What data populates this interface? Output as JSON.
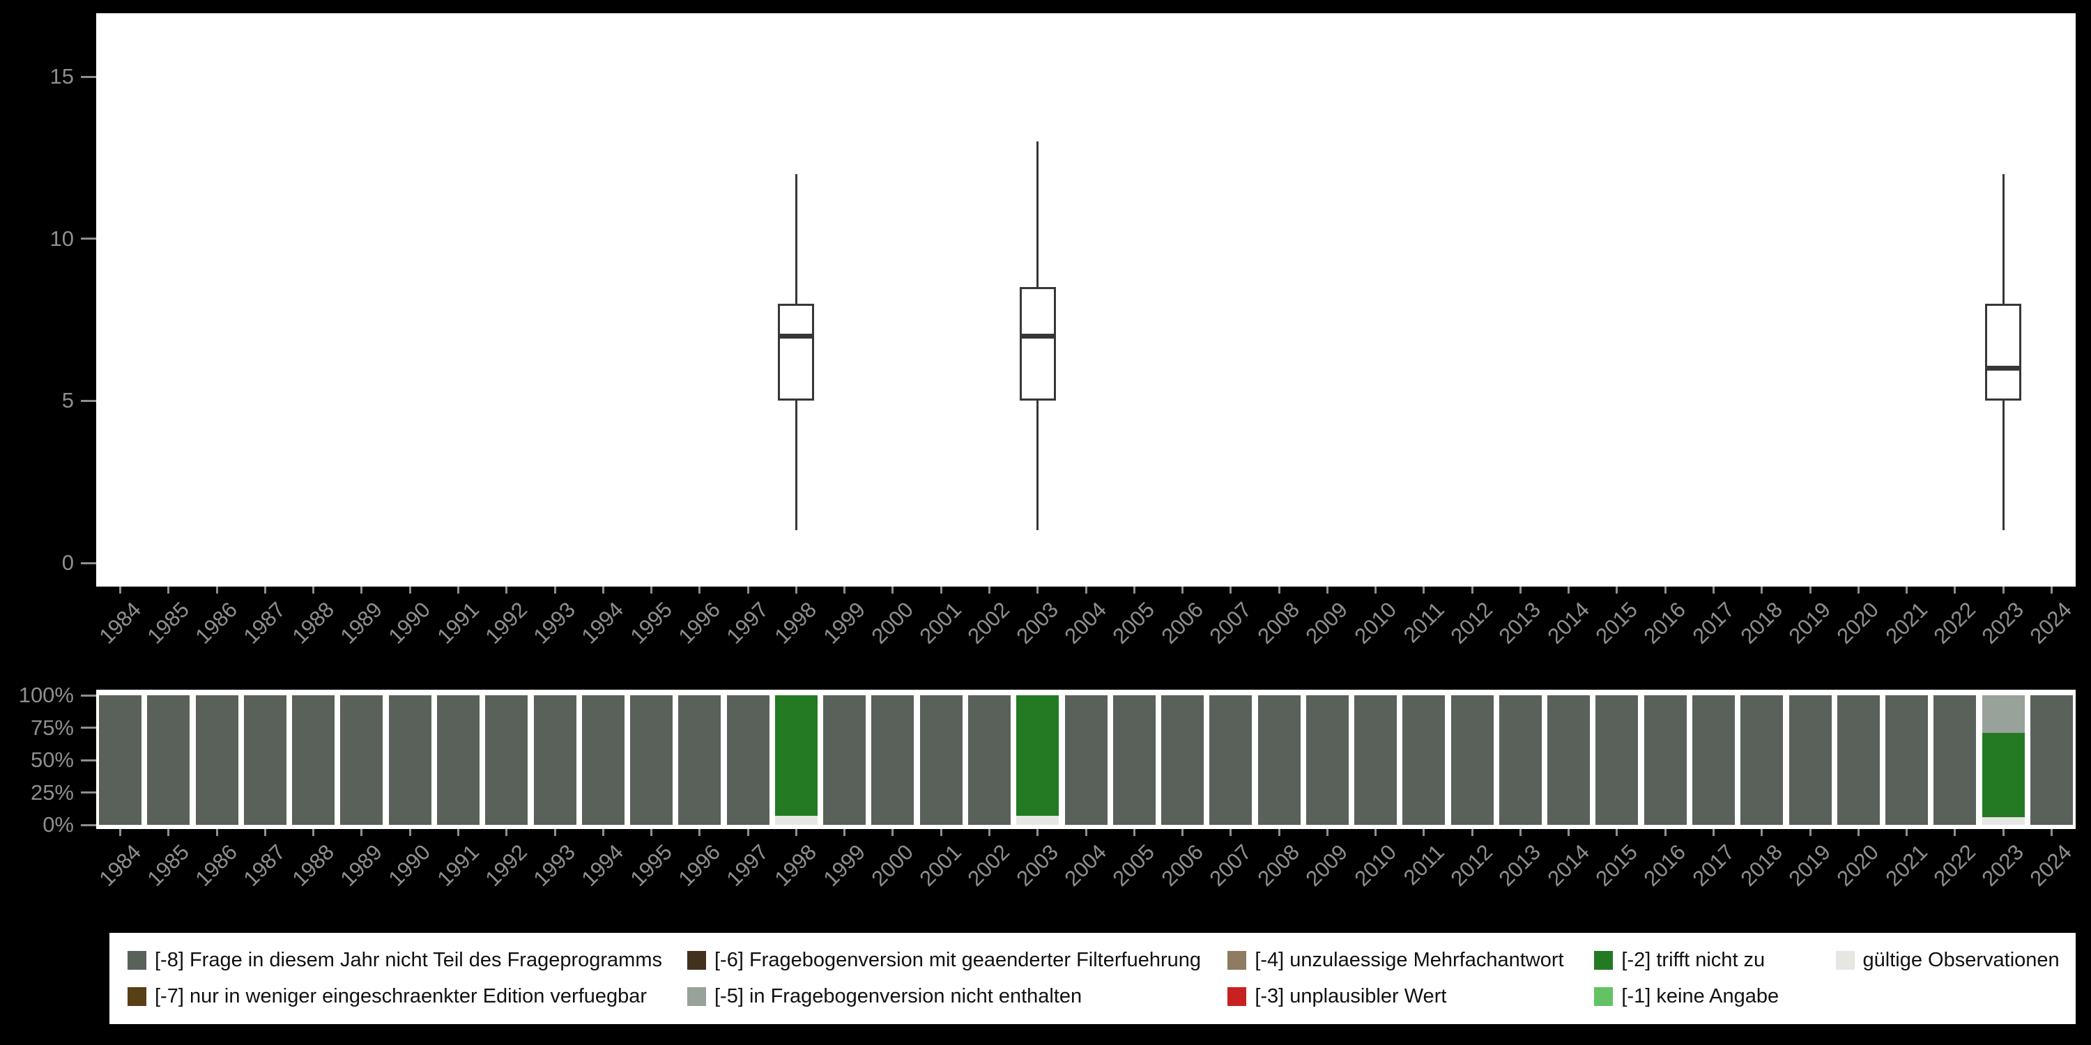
{
  "colors": {
    "page_background": "#000000",
    "panel_background": "#ffffff",
    "axis_text": "#8f8f8f",
    "box_stroke": "#373737"
  },
  "codes": {
    "-8": {
      "label": "[-8] Frage in diesem Jahr nicht Teil des Frageprogramms",
      "color": "#59615a"
    },
    "-7": {
      "label": "[-7] nur in weniger eingeschraenkter Edition verfuegbar",
      "color": "#583f16"
    },
    "-6": {
      "label": "[-6] Fragebogenversion mit geaenderter Filterfuehrung",
      "color": "#42311d"
    },
    "-5": {
      "label": "[-5] in Fragebogenversion nicht enthalten",
      "color": "#98a29a"
    },
    "-4": {
      "label": "[-4] unzulaessige Mehrfachantwort",
      "color": "#8d7b62"
    },
    "-3": {
      "label": "[-3] unplausibler Wert",
      "color": "#c82121"
    },
    "-2": {
      "label": "[-2] trifft nicht zu",
      "color": "#237a23"
    },
    "-1": {
      "label": "[-1] keine Angabe",
      "color": "#63c363"
    },
    "valid": {
      "label": "gültige Observationen",
      "color": "#e6e6e2"
    }
  },
  "years": [
    "1984",
    "1985",
    "1986",
    "1987",
    "1988",
    "1989",
    "1990",
    "1991",
    "1992",
    "1993",
    "1994",
    "1995",
    "1996",
    "1997",
    "1998",
    "1999",
    "2000",
    "2001",
    "2002",
    "2003",
    "2004",
    "2005",
    "2006",
    "2007",
    "2008",
    "2009",
    "2010",
    "2011",
    "2012",
    "2013",
    "2014",
    "2015",
    "2016",
    "2017",
    "2018",
    "2019",
    "2020",
    "2021",
    "2022",
    "2023",
    "2024"
  ],
  "chart_data": [
    {
      "type": "boxplot",
      "title": "",
      "xlabel": "",
      "ylabel": "",
      "ylim": [
        0,
        15
      ],
      "yticks": [
        0,
        5,
        10,
        15
      ],
      "grid": false,
      "boxes": [
        {
          "year": "1998",
          "min": 1,
          "q1": 5,
          "median": 7,
          "q3": 8,
          "max": 12
        },
        {
          "year": "2003",
          "min": 1,
          "q1": 5,
          "median": 7,
          "q3": 8.5,
          "max": 13
        },
        {
          "year": "2023",
          "min": 1,
          "q1": 5,
          "median": 6,
          "q3": 8,
          "max": 12
        }
      ]
    },
    {
      "type": "bar",
      "subtype": "stacked-percent",
      "title": "",
      "xlabel": "",
      "ylabel": "",
      "yticks": [
        {
          "pct": 100,
          "label": "100%"
        },
        {
          "pct": 75,
          "label": "75%"
        },
        {
          "pct": 50,
          "label": "50%"
        },
        {
          "pct": 25,
          "label": "25%"
        },
        {
          "pct": 0,
          "label": "0%"
        }
      ],
      "bars": [
        {
          "year": "1984",
          "segments": [
            {
              "code": "-8",
              "pct": 100
            }
          ]
        },
        {
          "year": "1985",
          "segments": [
            {
              "code": "-8",
              "pct": 100
            }
          ]
        },
        {
          "year": "1986",
          "segments": [
            {
              "code": "-8",
              "pct": 100
            }
          ]
        },
        {
          "year": "1987",
          "segments": [
            {
              "code": "-8",
              "pct": 100
            }
          ]
        },
        {
          "year": "1988",
          "segments": [
            {
              "code": "-8",
              "pct": 100
            }
          ]
        },
        {
          "year": "1989",
          "segments": [
            {
              "code": "-8",
              "pct": 100
            }
          ]
        },
        {
          "year": "1990",
          "segments": [
            {
              "code": "-8",
              "pct": 100
            }
          ]
        },
        {
          "year": "1991",
          "segments": [
            {
              "code": "-8",
              "pct": 100
            }
          ]
        },
        {
          "year": "1992",
          "segments": [
            {
              "code": "-8",
              "pct": 100
            }
          ]
        },
        {
          "year": "1993",
          "segments": [
            {
              "code": "-8",
              "pct": 100
            }
          ]
        },
        {
          "year": "1994",
          "segments": [
            {
              "code": "-8",
              "pct": 100
            }
          ]
        },
        {
          "year": "1995",
          "segments": [
            {
              "code": "-8",
              "pct": 100
            }
          ]
        },
        {
          "year": "1996",
          "segments": [
            {
              "code": "-8",
              "pct": 100
            }
          ]
        },
        {
          "year": "1997",
          "segments": [
            {
              "code": "-8",
              "pct": 100
            }
          ]
        },
        {
          "year": "1998",
          "segments": [
            {
              "code": "-2",
              "pct": 93
            },
            {
              "code": "valid",
              "pct": 7
            }
          ]
        },
        {
          "year": "1999",
          "segments": [
            {
              "code": "-8",
              "pct": 100
            }
          ]
        },
        {
          "year": "2000",
          "segments": [
            {
              "code": "-8",
              "pct": 100
            }
          ]
        },
        {
          "year": "2001",
          "segments": [
            {
              "code": "-8",
              "pct": 100
            }
          ]
        },
        {
          "year": "2002",
          "segments": [
            {
              "code": "-8",
              "pct": 100
            }
          ]
        },
        {
          "year": "2003",
          "segments": [
            {
              "code": "-2",
              "pct": 93
            },
            {
              "code": "valid",
              "pct": 7
            }
          ]
        },
        {
          "year": "2004",
          "segments": [
            {
              "code": "-8",
              "pct": 100
            }
          ]
        },
        {
          "year": "2005",
          "segments": [
            {
              "code": "-8",
              "pct": 100
            }
          ]
        },
        {
          "year": "2006",
          "segments": [
            {
              "code": "-8",
              "pct": 100
            }
          ]
        },
        {
          "year": "2007",
          "segments": [
            {
              "code": "-8",
              "pct": 100
            }
          ]
        },
        {
          "year": "2008",
          "segments": [
            {
              "code": "-8",
              "pct": 100
            }
          ]
        },
        {
          "year": "2009",
          "segments": [
            {
              "code": "-8",
              "pct": 100
            }
          ]
        },
        {
          "year": "2010",
          "segments": [
            {
              "code": "-8",
              "pct": 100
            }
          ]
        },
        {
          "year": "2011",
          "segments": [
            {
              "code": "-8",
              "pct": 100
            }
          ]
        },
        {
          "year": "2012",
          "segments": [
            {
              "code": "-8",
              "pct": 100
            }
          ]
        },
        {
          "year": "2013",
          "segments": [
            {
              "code": "-8",
              "pct": 100
            }
          ]
        },
        {
          "year": "2014",
          "segments": [
            {
              "code": "-8",
              "pct": 100
            }
          ]
        },
        {
          "year": "2015",
          "segments": [
            {
              "code": "-8",
              "pct": 100
            }
          ]
        },
        {
          "year": "2016",
          "segments": [
            {
              "code": "-8",
              "pct": 100
            }
          ]
        },
        {
          "year": "2017",
          "segments": [
            {
              "code": "-8",
              "pct": 100
            }
          ]
        },
        {
          "year": "2018",
          "segments": [
            {
              "code": "-8",
              "pct": 100
            }
          ]
        },
        {
          "year": "2019",
          "segments": [
            {
              "code": "-8",
              "pct": 100
            }
          ]
        },
        {
          "year": "2020",
          "segments": [
            {
              "code": "-8",
              "pct": 100
            }
          ]
        },
        {
          "year": "2021",
          "segments": [
            {
              "code": "-8",
              "pct": 100
            }
          ]
        },
        {
          "year": "2022",
          "segments": [
            {
              "code": "-8",
              "pct": 100
            }
          ]
        },
        {
          "year": "2023",
          "segments": [
            {
              "code": "-5",
              "pct": 29
            },
            {
              "code": "-2",
              "pct": 65
            },
            {
              "code": "valid",
              "pct": 6
            }
          ]
        },
        {
          "year": "2024",
          "segments": [
            {
              "code": "-8",
              "pct": 100
            }
          ]
        }
      ]
    }
  ],
  "legend": {
    "rows": [
      [
        "-8",
        "-6",
        "-4",
        "-2",
        "valid"
      ],
      [
        "-7",
        "-5",
        "-3",
        "-1"
      ]
    ]
  }
}
